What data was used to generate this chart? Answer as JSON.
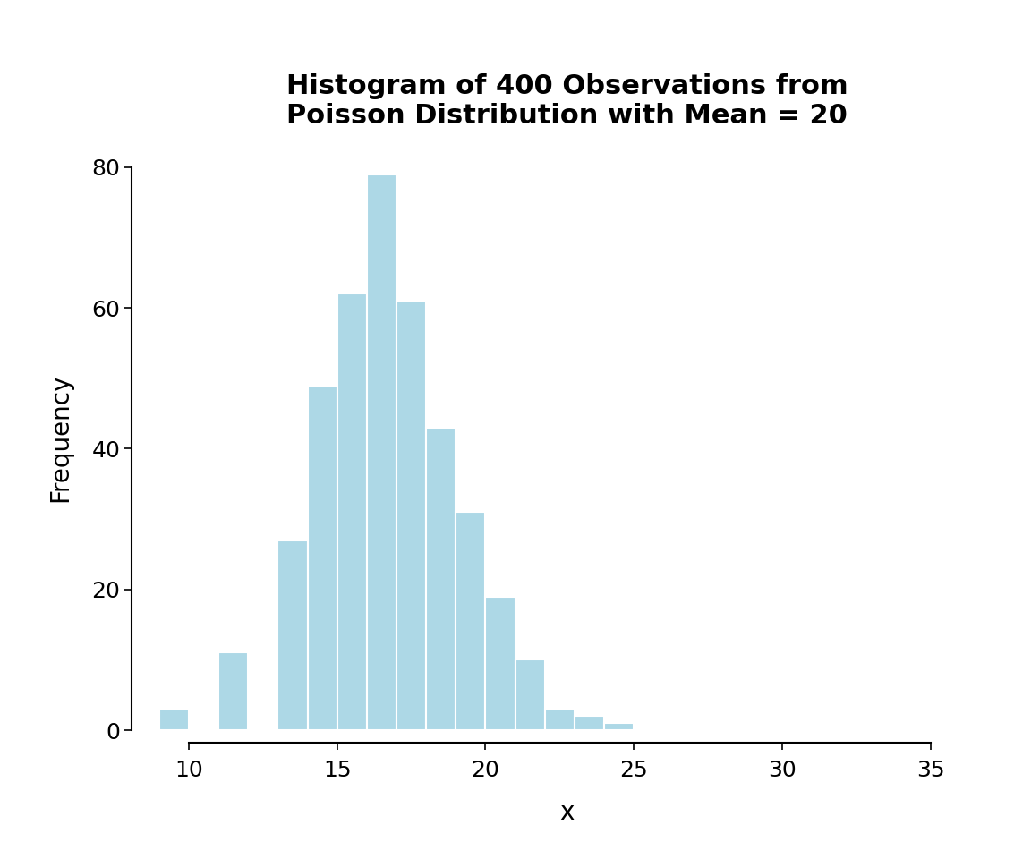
{
  "title": "Histogram of 400 Observations from\nPoisson Distribution with Mean = 20",
  "xlabel": "x",
  "ylabel": "Frequency",
  "bar_color": "#add8e6",
  "bar_edge_color": "white",
  "background_color": "white",
  "bin_edges": [
    9,
    10,
    11,
    12,
    13,
    14,
    15,
    16,
    17,
    18,
    19,
    20,
    21,
    22,
    23,
    24,
    25,
    26,
    27,
    28,
    29,
    30,
    31,
    32,
    33,
    34,
    35
  ],
  "heights": [
    3,
    0,
    11,
    0,
    27,
    49,
    62,
    79,
    61,
    43,
    31,
    19,
    10,
    3,
    2,
    1,
    0,
    0,
    0,
    0,
    0,
    0,
    0,
    0,
    0,
    0
  ],
  "xlim": [
    8.5,
    37
  ],
  "ylim": [
    0,
    83
  ],
  "xticks": [
    10,
    15,
    20,
    25,
    30,
    35
  ],
  "yticks": [
    0,
    20,
    40,
    60,
    80
  ],
  "title_fontsize": 22,
  "axis_label_fontsize": 20,
  "tick_fontsize": 18,
  "bar_linewidth": 1.5
}
